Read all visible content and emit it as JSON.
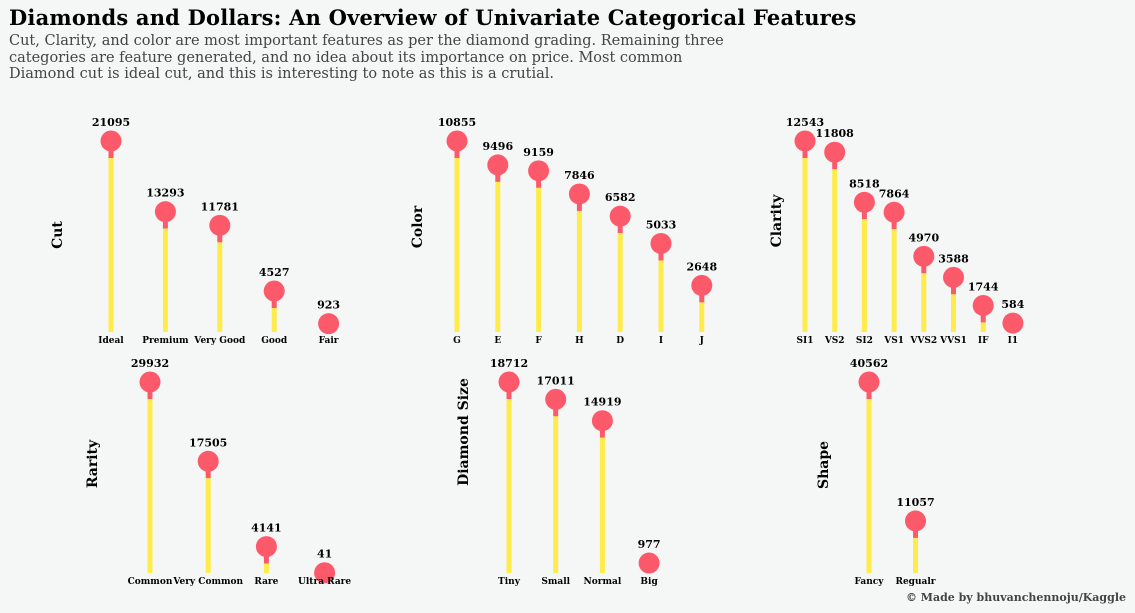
{
  "title": "Diamonds and Dollars: An Overview of Univariate Categorical Features",
  "subtitle": "Cut, Clarity, and color are most important features as per the diamond grading. Remaining three\ncategories are feature generated, and no idea about its importance on price. Most common\nDiamond cut is ideal cut, and this is interesting to note as this is a crutial.",
  "credit": "© Made by bhuvanchennoju/Kaggle",
  "colors": {
    "background": "#f5f6f6",
    "stem_top": "#fc5a6a",
    "stem_bottom": "#ffec4a",
    "marker": "#fc5a6a"
  },
  "chart_data": [
    {
      "type": "lollipop",
      "ylabel": "Cut",
      "categories": [
        "Ideal",
        "Premium",
        "Very Good",
        "Good",
        "Fair"
      ],
      "values": [
        21095,
        13293,
        11781,
        4527,
        923
      ]
    },
    {
      "type": "lollipop",
      "ylabel": "Color",
      "categories": [
        "G",
        "E",
        "F",
        "H",
        "D",
        "I",
        "J"
      ],
      "values": [
        10855,
        9496,
        9159,
        7846,
        6582,
        5033,
        2648
      ]
    },
    {
      "type": "lollipop",
      "ylabel": "Clarity",
      "categories": [
        "SI1",
        "VS2",
        "SI2",
        "VS1",
        "VVS2",
        "VVS1",
        "IF",
        "I1"
      ],
      "values": [
        12543,
        11808,
        8518,
        7864,
        4970,
        3588,
        1744,
        584
      ]
    },
    {
      "type": "lollipop",
      "ylabel": "Rarity",
      "categories": [
        "Common",
        "Very Common",
        "Rare",
        "Ultra Rare"
      ],
      "values": [
        29932,
        17505,
        4141,
        41
      ]
    },
    {
      "type": "lollipop",
      "ylabel": "Diamond Size",
      "categories": [
        "Tiny",
        "Small",
        "Normal",
        "Big"
      ],
      "values": [
        18712,
        17011,
        14919,
        977
      ]
    },
    {
      "type": "lollipop",
      "ylabel": "Shape",
      "categories": [
        "Fancy",
        "Regualr"
      ],
      "values": [
        40562,
        11057
      ]
    }
  ]
}
